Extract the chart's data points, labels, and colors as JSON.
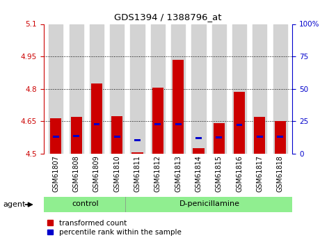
{
  "title": "GDS1394 / 1388796_at",
  "samples": [
    "GSM61807",
    "GSM61808",
    "GSM61809",
    "GSM61810",
    "GSM61811",
    "GSM61812",
    "GSM61813",
    "GSM61814",
    "GSM61815",
    "GSM61816",
    "GSM61817",
    "GSM61818"
  ],
  "red_values": [
    4.665,
    4.67,
    4.825,
    4.672,
    4.505,
    4.805,
    4.935,
    4.525,
    4.64,
    4.785,
    4.67,
    4.65
  ],
  "blue_values": [
    4.578,
    4.582,
    4.637,
    4.578,
    4.563,
    4.637,
    4.637,
    4.571,
    4.574,
    4.632,
    4.578,
    4.578
  ],
  "ymin": 4.5,
  "ymax": 5.1,
  "yticks_left": [
    4.5,
    4.65,
    4.8,
    4.95,
    5.1
  ],
  "yticks_right": [
    0,
    25,
    50,
    75,
    100
  ],
  "control_samples": 4,
  "groups": [
    "control",
    "D-penicillamine"
  ],
  "bar_width": 0.55,
  "red_color": "#cc0000",
  "blue_color": "#0000cc",
  "col_bg": "#d3d3d3",
  "group_bg": "#90ee90",
  "plot_bg": "#ffffff",
  "grid_color": "#000000"
}
